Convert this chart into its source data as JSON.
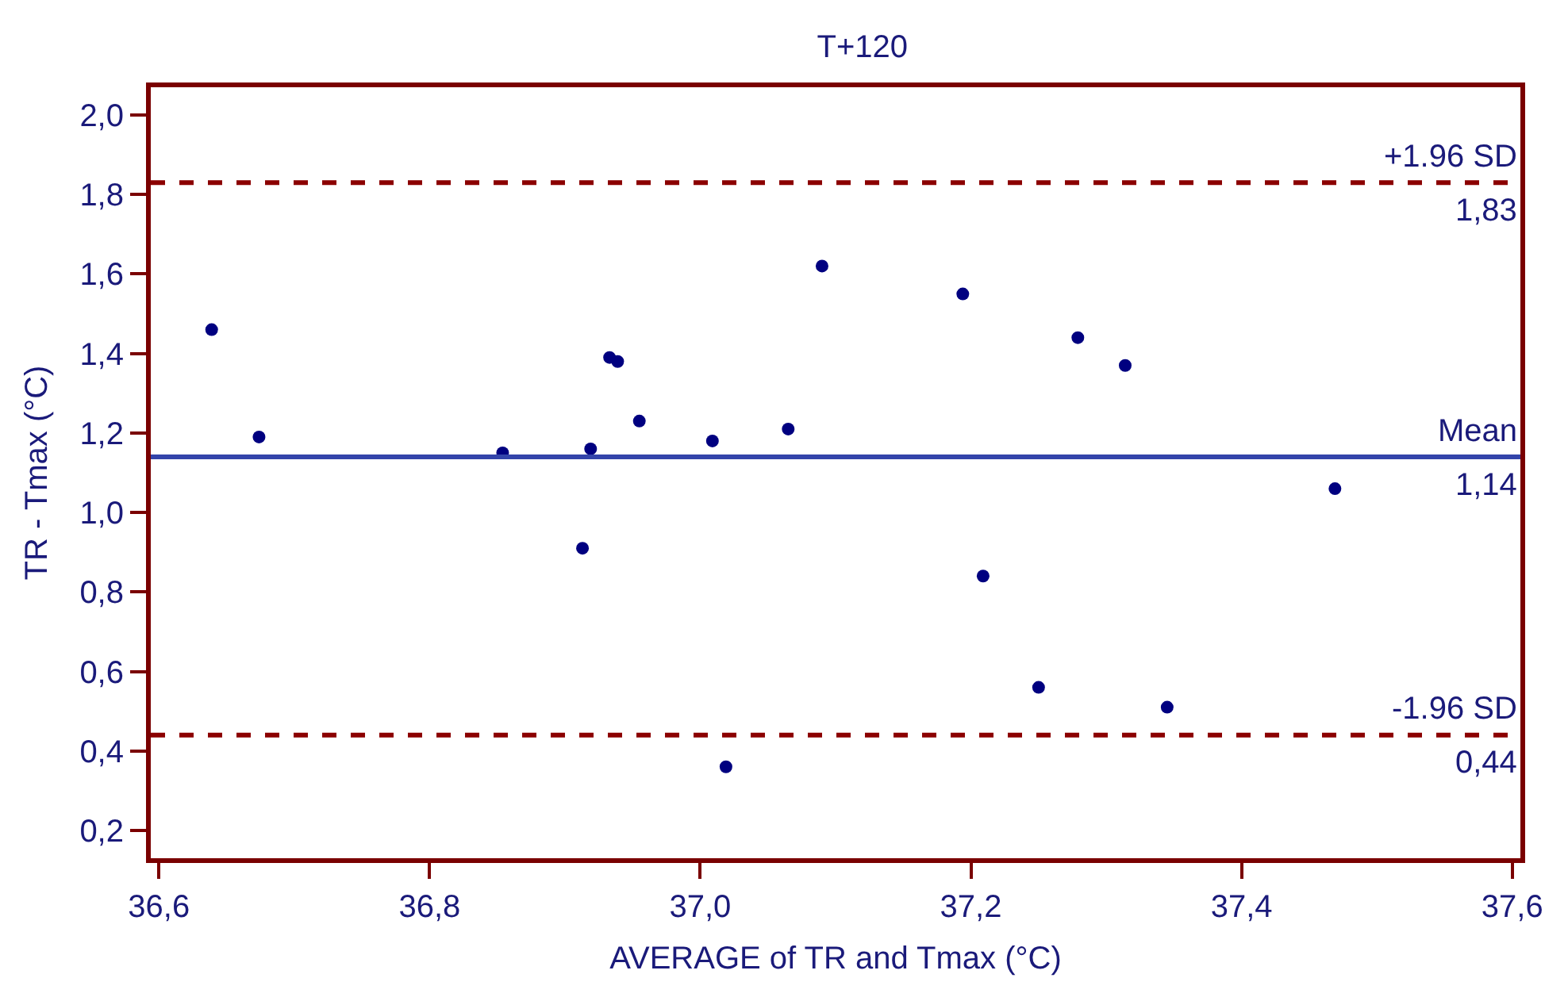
{
  "chart_data": {
    "type": "scatter",
    "title": "T+120",
    "xlabel": "AVERAGE of TR and Tmax (°C)",
    "ylabel": "TR - Tmax (°C)",
    "x": [
      36.639,
      36.674,
      36.854,
      36.919,
      36.913,
      36.933,
      36.939,
      36.955,
      37.009,
      37.019,
      37.065,
      37.09,
      37.194,
      37.209,
      37.25,
      37.279,
      37.314,
      37.345,
      37.469
    ],
    "series": [
      {
        "color": "#000080",
        "values": [
          1.46,
          1.19,
          1.15,
          1.16,
          0.91,
          1.39,
          1.38,
          1.23,
          1.18,
          0.36,
          1.21,
          1.62,
          1.55,
          0.84,
          0.56,
          1.44,
          1.37,
          0.51,
          1.06
        ]
      }
    ],
    "marker": "circle",
    "xlim": [
      36.594,
      37.606
    ],
    "ylim": [
      0.13,
      2.07
    ],
    "xticks": [
      {
        "value": 36.6,
        "label": "36,6"
      },
      {
        "value": 36.8,
        "label": "36,8"
      },
      {
        "value": 37.0,
        "label": "37,0"
      },
      {
        "value": 37.2,
        "label": "37,2"
      },
      {
        "value": 37.4,
        "label": "37,4"
      },
      {
        "value": 37.6,
        "label": "37,6"
      }
    ],
    "yticks": [
      {
        "value": 0.2,
        "label": "0,2"
      },
      {
        "value": 0.4,
        "label": "0,4"
      },
      {
        "value": 0.6,
        "label": "0,6"
      },
      {
        "value": 0.8,
        "label": "0,8"
      },
      {
        "value": 1.0,
        "label": "1,0"
      },
      {
        "value": 1.2,
        "label": "1,2"
      },
      {
        "value": 1.4,
        "label": "1,4"
      },
      {
        "value": 1.6,
        "label": "1,6"
      },
      {
        "value": 1.8,
        "label": "1,8"
      },
      {
        "value": 2.0,
        "label": "2,0"
      }
    ],
    "ref_lines": [
      {
        "axis": "y",
        "value": 1.83,
        "label": "+1.96 SD",
        "color": "#8b0000",
        "line_style": "dashed"
      },
      {
        "axis": "y",
        "value": 1.14,
        "label": "Mean",
        "color": "#3344aa",
        "line_style": "solid"
      },
      {
        "axis": "y",
        "value": 0.44,
        "label": "-1.96 SD",
        "color": "#8b0000",
        "line_style": "dashed"
      }
    ],
    "annotations": [
      {
        "text": "1,83",
        "y": 1.83
      },
      {
        "text": "1,14",
        "y": 1.14
      },
      {
        "text": "0,44",
        "y": 0.44
      }
    ]
  }
}
